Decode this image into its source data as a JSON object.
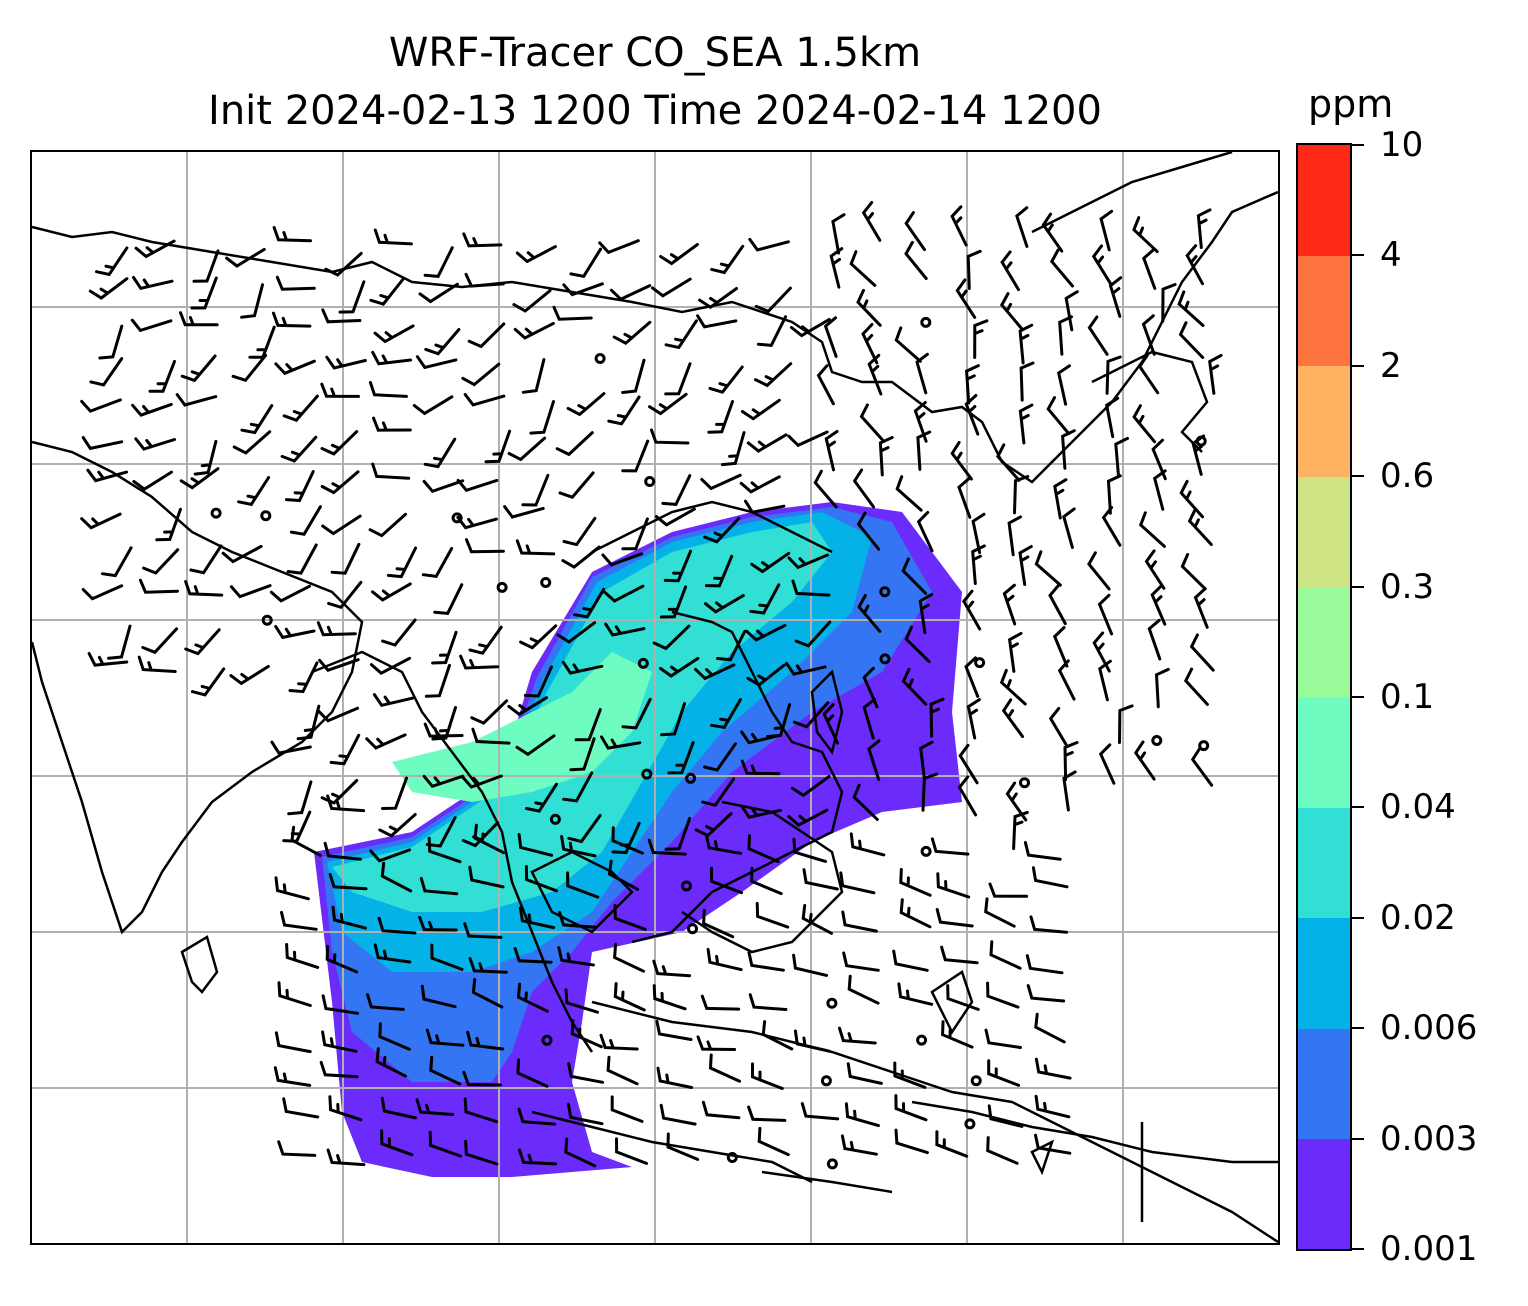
{
  "title": {
    "line1": "WRF-Tracer CO_SEA 1.5km",
    "line2": "Init 2024-02-13 1200 Time 2024-02-14 1200"
  },
  "colorbar": {
    "unit": "ppm",
    "levels": [
      "0.001",
      "0.003",
      "0.006",
      "0.02",
      "0.04",
      "0.1",
      "0.3",
      "0.6",
      "2",
      "4",
      "10"
    ],
    "colors": [
      "#6a2bfb",
      "#3375f3",
      "#04b2e8",
      "#32dfd4",
      "#6efcc0",
      "#9afb9a",
      "#cde384",
      "#feb262",
      "#fe753f",
      "#fe2a17"
    ]
  },
  "map": {
    "gridlines": true,
    "gridline_color": "#b0b0b0",
    "coastline_color": "#000000"
  }
}
